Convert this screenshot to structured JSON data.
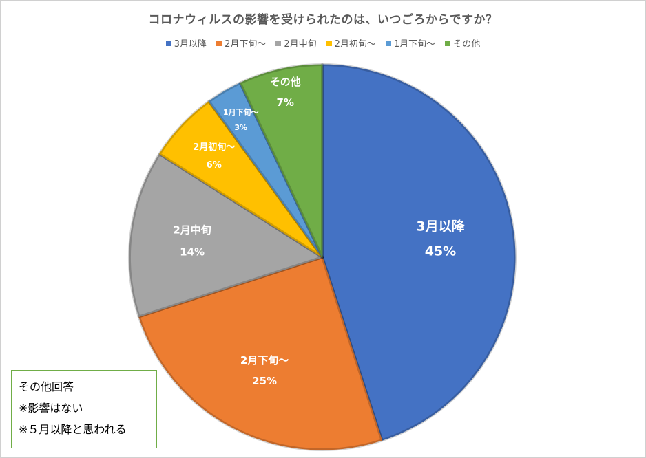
{
  "chart_data": {
    "type": "pie",
    "title": "コロナウィルスの影響を受けられたのは、いつごろからですか？",
    "categories": [
      "3月以降",
      "2月下旬～",
      "2月中旬",
      "2月初旬～",
      "1月下旬～",
      "その他"
    ],
    "values": [
      45,
      25,
      14,
      6,
      3,
      7
    ],
    "value_labels": [
      "45%",
      "25%",
      "14%",
      "6%",
      "3%",
      "7%"
    ],
    "colors": [
      "#4472c4",
      "#ed7d31",
      "#a5a5a5",
      "#ffc000",
      "#5b9bd5",
      "#70ad47"
    ],
    "legend_position": "top"
  },
  "note": {
    "lines": [
      "その他回答",
      "※影響はない",
      "※５月以降と思われる"
    ]
  }
}
